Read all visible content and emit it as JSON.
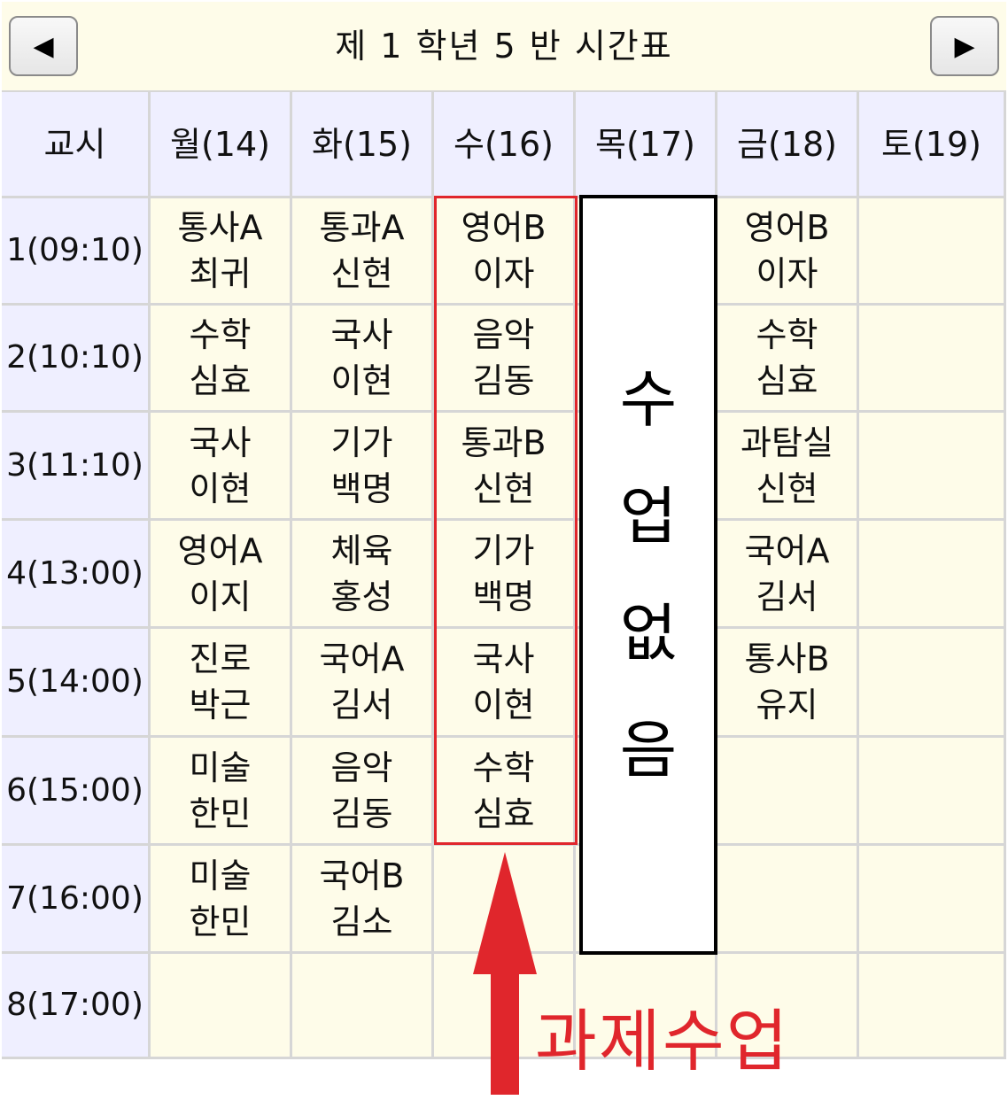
{
  "header": {
    "title": "제 1 학년 5 반 시간표",
    "prev_label": "◀",
    "next_label": "▶"
  },
  "columns": [
    "교시",
    "월(14)",
    "화(15)",
    "수(16)",
    "목(17)",
    "금(18)",
    "토(19)"
  ],
  "rows": [
    {
      "period": "1(09:10)",
      "cells": [
        [
          "통사A",
          "최귀"
        ],
        [
          "통과A",
          "신현"
        ],
        [
          "영어B",
          "이자"
        ],
        [],
        [
          "영어B",
          "이자"
        ],
        []
      ]
    },
    {
      "period": "2(10:10)",
      "cells": [
        [
          "수학",
          "심효"
        ],
        [
          "국사",
          "이현"
        ],
        [
          "음악",
          "김동"
        ],
        [],
        [
          "수학",
          "심효"
        ],
        []
      ]
    },
    {
      "period": "3(11:10)",
      "cells": [
        [
          "국사",
          "이현"
        ],
        [
          "기가",
          "백명"
        ],
        [
          "통과B",
          "신현"
        ],
        [],
        [
          "과탐실",
          "신현"
        ],
        []
      ]
    },
    {
      "period": "4(13:00)",
      "cells": [
        [
          "영어A",
          "이지"
        ],
        [
          "체육",
          "홍성"
        ],
        [
          "기가",
          "백명"
        ],
        [],
        [
          "국어A",
          "김서"
        ],
        []
      ]
    },
    {
      "period": "5(14:00)",
      "cells": [
        [
          "진로",
          "박근"
        ],
        [
          "국어A",
          "김서"
        ],
        [
          "국사",
          "이현"
        ],
        [],
        [
          "통사B",
          "유지"
        ],
        []
      ]
    },
    {
      "period": "6(15:00)",
      "cells": [
        [
          "미술",
          "한민"
        ],
        [
          "음악",
          "김동"
        ],
        [
          "수학",
          "심효"
        ],
        [],
        [],
        []
      ]
    },
    {
      "period": "7(16:00)",
      "cells": [
        [
          "미술",
          "한민"
        ],
        [
          "국어B",
          "김소"
        ],
        [],
        [],
        [],
        []
      ]
    },
    {
      "period": "8(17:00)",
      "cells": [
        [],
        [],
        [],
        [],
        [],
        []
      ]
    }
  ],
  "annotations": {
    "no_class": "수업없음",
    "task_class": "과제수업",
    "highlight_color": "#e0262c"
  }
}
